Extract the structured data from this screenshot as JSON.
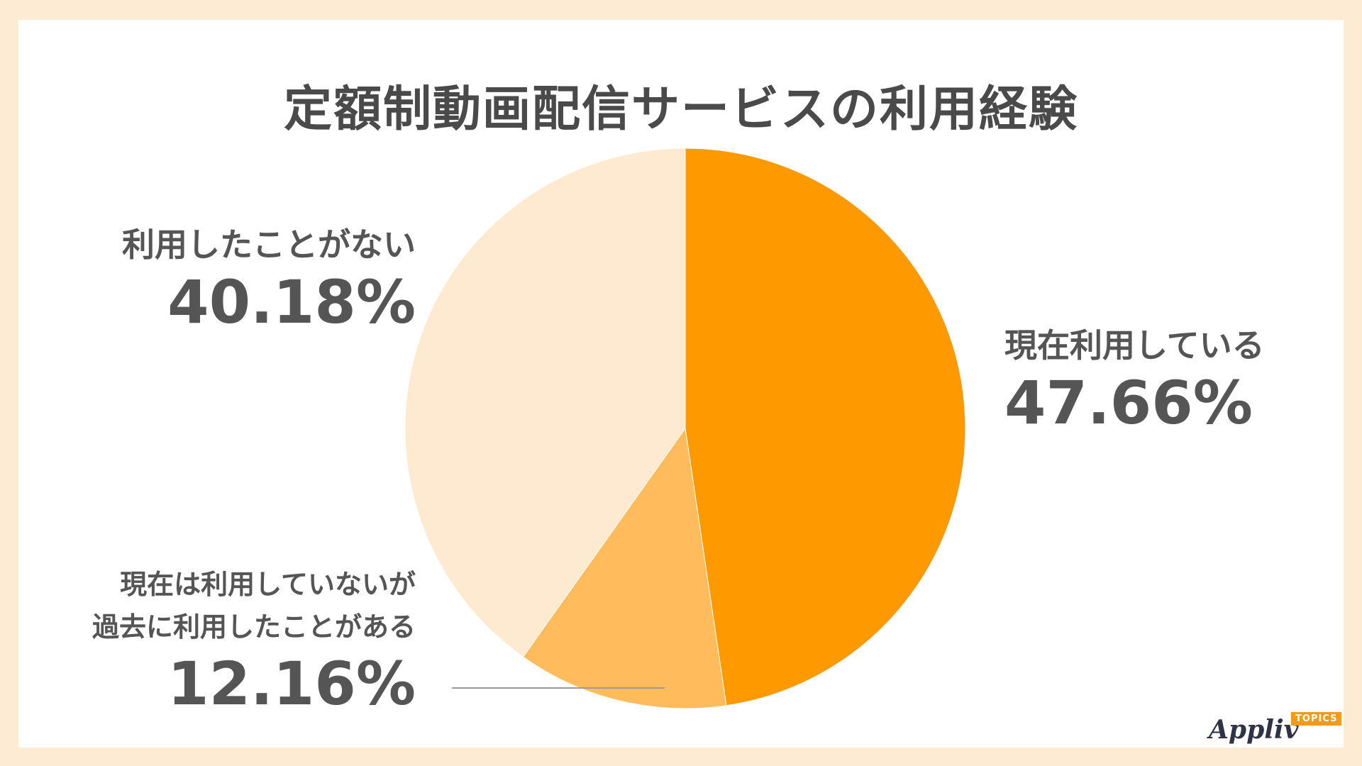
{
  "title": "定額制動画配信サービスの利用経験",
  "chart_data": {
    "type": "pie",
    "title": "定額制動画配信サービスの利用経験",
    "slices": [
      {
        "label": "現在利用している",
        "value": 47.66,
        "value_label": "47.66%",
        "color": "#FF9900"
      },
      {
        "label_line1": "現在は利用していないが",
        "label_line2": "過去に利用したことがある",
        "label": "現在は利用していないが過去に利用したことがある",
        "value": 12.16,
        "value_label": "12.16%",
        "color": "#FFBB5C"
      },
      {
        "label": "利用したことがない",
        "value": 40.18,
        "value_label": "40.18%",
        "color": "#FDEAD0"
      }
    ],
    "start": "12 o'clock",
    "direction": "clockwise"
  },
  "logo": {
    "word": "Appliv",
    "badge": "TOPICS"
  }
}
